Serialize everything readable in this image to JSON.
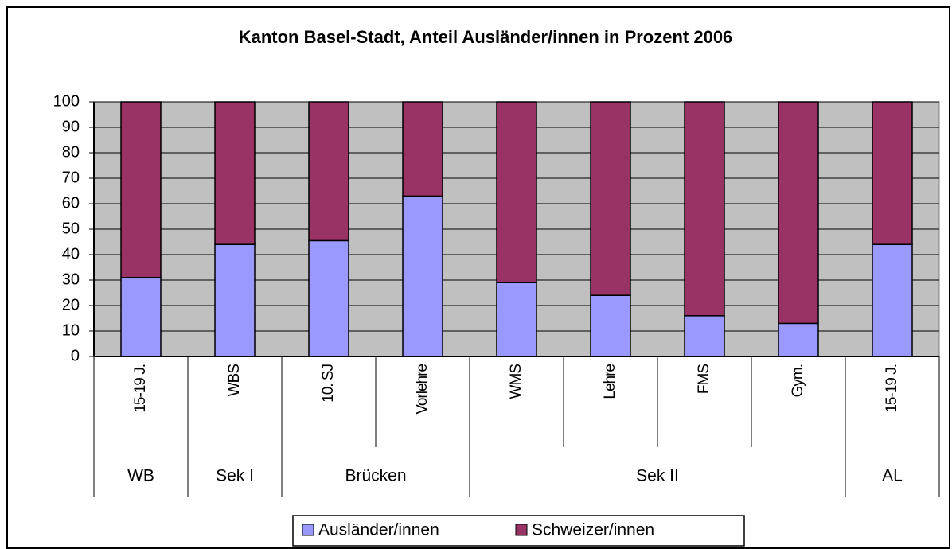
{
  "chart_data": {
    "type": "stacked_bar",
    "title": "Kanton Basel-Stadt, Anteil Ausländer/innen in Prozent 2006",
    "categories": [
      "15-19 J.",
      "WBS",
      "10. SJ",
      "Vorlehre",
      "WMS",
      "Lehre",
      "FMS",
      "Gym.",
      "15-19 J."
    ],
    "groups": [
      "WB",
      "Sek I",
      "Brücken",
      "Brücken",
      "Sek II",
      "Sek II",
      "Sek II",
      "Sek II",
      "AL"
    ],
    "series": [
      {
        "name": "Ausländer/innen",
        "color": "#9999ff",
        "values": [
          31,
          44,
          45.5,
          63,
          29,
          24,
          16,
          13,
          44
        ]
      },
      {
        "name": "Schweizer/innen",
        "color": "#993366",
        "values": [
          69,
          56,
          54.5,
          37,
          71,
          76,
          84,
          87,
          56
        ]
      }
    ],
    "ylim": [
      0,
      100
    ],
    "yticks": [
      0,
      10,
      20,
      30,
      40,
      50,
      60,
      70,
      80,
      90,
      100
    ],
    "grid": true,
    "plot_background": "#c0c0c0",
    "legend": "bottom"
  }
}
